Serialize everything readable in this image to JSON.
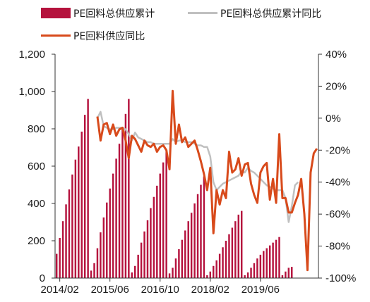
{
  "chart_data": {
    "type": "bar+line",
    "title": "",
    "xlabel": "",
    "ylabel": "",
    "ylim_left": [
      0,
      1200
    ],
    "ylim_right": [
      -100,
      40
    ],
    "right_axis_unit": "%",
    "x_start": "2014-01",
    "x_end": "2020-12",
    "legend_position": "top",
    "grid": false,
    "y_left_ticks": [
      "0",
      "200",
      "400",
      "600",
      "800",
      "1,000",
      "1,200"
    ],
    "y_left_values": [
      0,
      200,
      400,
      600,
      800,
      1000,
      1200
    ],
    "y_right_ticks": [
      "-100%",
      "-80%",
      "-60%",
      "-40%",
      "-20%",
      "0%",
      "20%",
      "40%"
    ],
    "y_right_values": [
      -100,
      -80,
      -60,
      -40,
      -20,
      0,
      20,
      40
    ],
    "x_tick_labels": [
      "2014/02",
      "2015/06",
      "2016/10",
      "2018/02",
      "2019/06"
    ],
    "x_tick_positions": [
      "2014-02",
      "2015-06",
      "2016-10",
      "2018-02",
      "2019-06"
    ],
    "series": [
      {
        "name": "PE回料总供应累计",
        "kind": "bar",
        "axis": "left",
        "color": "#b5123d",
        "start": "2014-01",
        "values": [
          130,
          215,
          305,
          395,
          475,
          555,
          635,
          705,
          785,
          875,
          960,
          40,
          80,
          160,
          245,
          325,
          405,
          480,
          560,
          640,
          720,
          800,
          880,
          960,
          30,
          65,
          125,
          190,
          250,
          310,
          375,
          435,
          495,
          560,
          620,
          680,
          25,
          55,
          105,
          155,
          205,
          255,
          305,
          350,
          400,
          450,
          500,
          545,
          15,
          35,
          65,
          95,
          130,
          165,
          200,
          235,
          270,
          305,
          340,
          360,
          15,
          30,
          55,
          80,
          105,
          125,
          145,
          160,
          175,
          190,
          205,
          220,
          15,
          35,
          55,
          60
        ]
      },
      {
        "name": "PE回料总供应累计同比",
        "kind": "line",
        "axis": "right",
        "color": "#c0c0c0",
        "start": "2015-02",
        "values": [
          0,
          4,
          -5,
          -6,
          -7,
          -7,
          -6,
          -6,
          -6,
          -7,
          -10,
          -14,
          -9,
          -12,
          -13,
          -14,
          -15,
          -15,
          -16,
          -16,
          -16,
          -16,
          -16,
          -16,
          -13,
          -15,
          -14,
          -14,
          -15,
          -15,
          -15,
          -16,
          -17,
          -17,
          -18,
          -18,
          -24,
          -40,
          -45,
          -43,
          -41,
          -40,
          -39,
          -38,
          -37,
          -36,
          -33,
          -34,
          -31,
          -33,
          -34,
          -36,
          -38,
          -40,
          -42,
          -43,
          -44,
          -45,
          -45,
          -45,
          -50,
          -65,
          -55,
          -42,
          -40
        ]
      },
      {
        "name": "PE回料供应同比",
        "kind": "line",
        "axis": "right",
        "color": "#d84a1b",
        "start": "2015-02",
        "values": [
          1,
          -14,
          -4,
          -3,
          -10,
          -4,
          -11,
          -7,
          -6,
          -14,
          -25,
          -11,
          -13,
          -17,
          -21,
          -14,
          -17,
          -18,
          -16,
          -21,
          -18,
          -17,
          -20,
          -32,
          17,
          -16,
          -4,
          -15,
          -12,
          -18,
          -16,
          -14,
          -20,
          -27,
          -35,
          -45,
          -31,
          -72,
          -45,
          -54,
          -45,
          -50,
          -21,
          -34,
          -32,
          -25,
          -36,
          -29,
          -28,
          -41,
          -48,
          -53,
          -34,
          -30,
          -28,
          -51,
          -38,
          -53,
          -10,
          -50,
          -50,
          -59,
          -59,
          -53,
          -48,
          -38,
          -60,
          -95,
          -34,
          -22,
          -19
        ]
      }
    ]
  }
}
